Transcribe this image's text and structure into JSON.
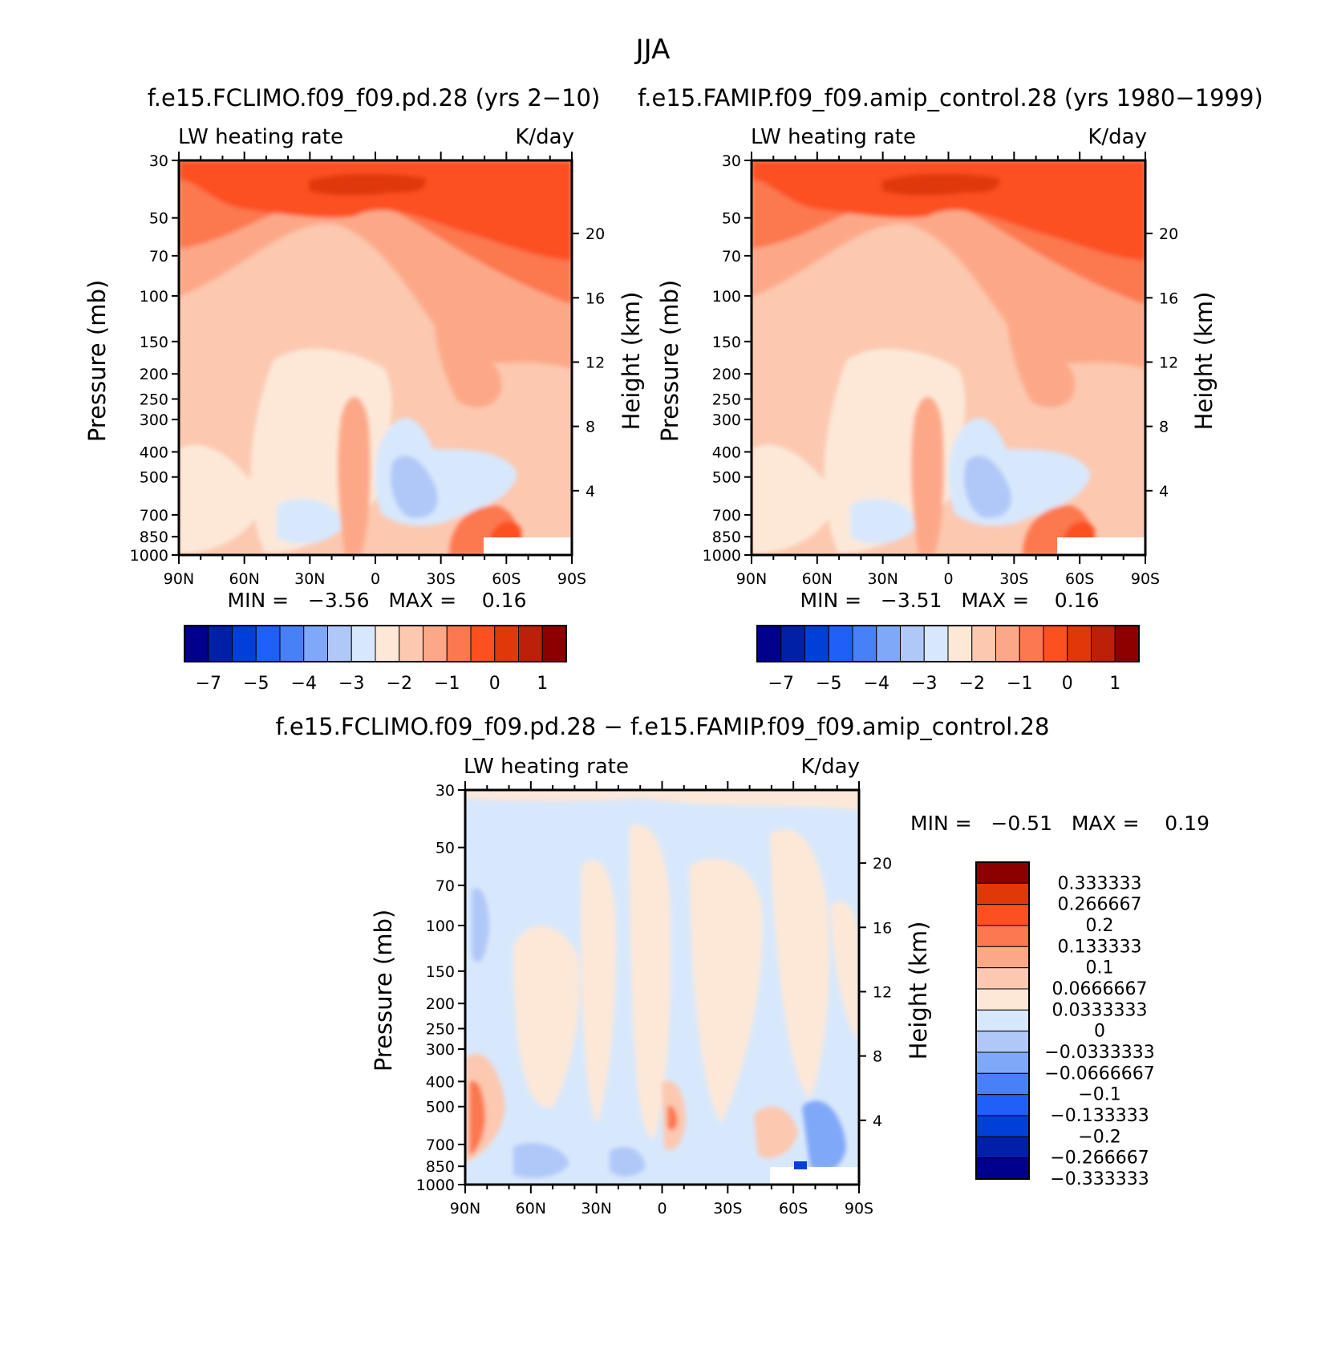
{
  "page": {
    "title": "JJA"
  },
  "colors": {
    "full_scale": [
      "#00008c",
      "#0020a8",
      "#0040d8",
      "#2060f8",
      "#4880f8",
      "#80a8f8",
      "#b0c8f8",
      "#d8e8fc",
      "#fde8d8",
      "#fcc8b0",
      "#fca888",
      "#fc7850",
      "#fc5020",
      "#e03808",
      "#bc2008",
      "#8c0000"
    ],
    "diff_scale": [
      "#00008c",
      "#0020a8",
      "#0040d8",
      "#2060f8",
      "#4880f8",
      "#80a8f8",
      "#b0c8f8",
      "#d8e8fc",
      "#fde8d8",
      "#fcc8b0",
      "#fca888",
      "#fc7850",
      "#fc5020",
      "#e03808",
      "#8c0000"
    ]
  },
  "chart_data": [
    {
      "type": "heatmap",
      "title": "f.e15.FCLIMO.f09_f09.pd.28 (yrs 2−10)",
      "left_label": "LW heating rate",
      "right_label": "K/day",
      "xlabel": "",
      "ylabel": "Pressure (mb)",
      "y2label": "Height (km)",
      "x_ticks": [
        "90N",
        "60N",
        "30N",
        "0",
        "30S",
        "60S",
        "90S"
      ],
      "y_ticks": [
        30,
        50,
        70,
        100,
        150,
        200,
        250,
        300,
        400,
        500,
        700,
        850,
        1000
      ],
      "y2_ticks": [
        20,
        16,
        12,
        8,
        4
      ],
      "stats_text": "MIN =   −3.56   MAX =    0.16",
      "min": -3.56,
      "max": 0.16,
      "colorbar_labels": [
        "−7",
        "−5",
        "−4",
        "−3",
        "−2",
        "−1",
        "0",
        "1"
      ],
      "colorbar_levels": [
        -7,
        -6,
        -5,
        -4.5,
        -4,
        -3.5,
        -3,
        -2.5,
        -2,
        -1.5,
        -1,
        -0.5,
        0,
        0.5,
        1
      ]
    },
    {
      "type": "heatmap",
      "title": "f.e15.FAMIP.f09_f09.amip_control.28 (yrs 1980−1999)",
      "left_label": "LW heating rate",
      "right_label": "K/day",
      "xlabel": "",
      "ylabel": "Pressure (mb)",
      "y2label": "Height (km)",
      "x_ticks": [
        "90N",
        "60N",
        "30N",
        "0",
        "30S",
        "60S",
        "90S"
      ],
      "y_ticks": [
        30,
        50,
        70,
        100,
        150,
        200,
        250,
        300,
        400,
        500,
        700,
        850,
        1000
      ],
      "y2_ticks": [
        20,
        16,
        12,
        8,
        4
      ],
      "stats_text": "MIN =   −3.51   MAX =    0.16",
      "min": -3.51,
      "max": 0.16,
      "colorbar_labels": [
        "−7",
        "−5",
        "−4",
        "−3",
        "−2",
        "−1",
        "0",
        "1"
      ],
      "colorbar_levels": [
        -7,
        -6,
        -5,
        -4.5,
        -4,
        -3.5,
        -3,
        -2.5,
        -2,
        -1.5,
        -1,
        -0.5,
        0,
        0.5,
        1
      ]
    },
    {
      "type": "heatmap",
      "title": "f.e15.FCLIMO.f09_f09.pd.28 − f.e15.FAMIP.f09_f09.amip_control.28",
      "left_label": "LW heating rate",
      "right_label": "K/day",
      "xlabel": "",
      "ylabel": "Pressure (mb)",
      "y2label": "Height (km)",
      "x_ticks": [
        "90N",
        "60N",
        "30N",
        "0",
        "30S",
        "60S",
        "90S"
      ],
      "y_ticks": [
        30,
        50,
        70,
        100,
        150,
        200,
        250,
        300,
        400,
        500,
        700,
        850,
        1000
      ],
      "y2_ticks": [
        20,
        16,
        12,
        8,
        4
      ],
      "stats_text": "MIN =   −0.51   MAX =    0.19",
      "min": -0.51,
      "max": 0.19,
      "colorbar_labels": [
        "0.333333",
        "0.266667",
        "0.2",
        "0.133333",
        "0.1",
        "0.0666667",
        "0.0333333",
        "0",
        "−0.0333333",
        "−0.0666667",
        "−0.1",
        "−0.133333",
        "−0.2",
        "−0.266667",
        "−0.333333"
      ]
    }
  ]
}
